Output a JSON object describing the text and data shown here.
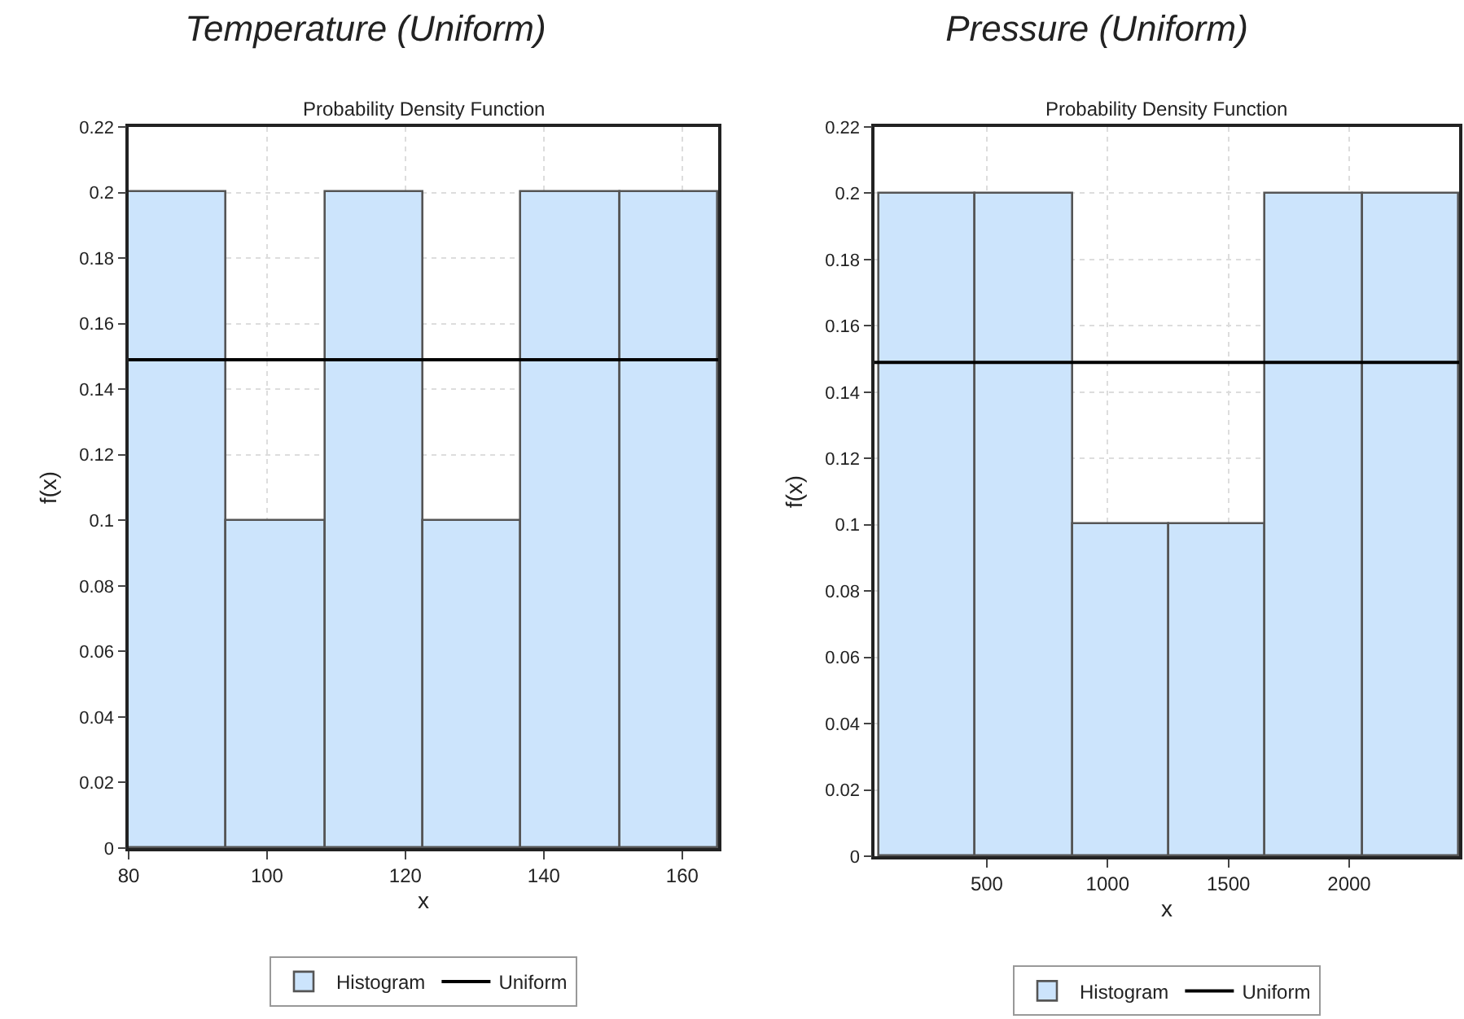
{
  "chart_data": [
    {
      "type": "histogram",
      "title": "Temperature (Uniform)",
      "subtitle": "Probability Density Function",
      "xlabel": "x",
      "ylabel": "f(x)",
      "bins": [
        80,
        94.2,
        108.4,
        122.6,
        136.8,
        151,
        165.2
      ],
      "series": [
        {
          "name": "Histogram",
          "color": "#cce4fc",
          "values": [
            0.2,
            0.1,
            0.2,
            0.1,
            0.2,
            0.2
          ]
        },
        {
          "name": "Uniform",
          "type": "line",
          "color": "#000000",
          "x": [
            80,
            165.2
          ],
          "values": [
            0.149,
            0.149
          ]
        }
      ],
      "xlim": [
        80,
        165.2
      ],
      "xticks": [
        80,
        100,
        120,
        140,
        160
      ],
      "ylim": [
        0,
        0.22
      ],
      "yticks": [
        0,
        0.02,
        0.04,
        0.06,
        0.08,
        0.1,
        0.12,
        0.14,
        0.16,
        0.18,
        0.2,
        0.22
      ],
      "grid": true,
      "legend": "bottom"
    },
    {
      "type": "histogram",
      "title": "Pressure (Uniform)",
      "subtitle": "Probability Density Function",
      "xlabel": "x",
      "ylabel": "f(x)",
      "bins": [
        55,
        455,
        855,
        1255,
        1655,
        2055,
        2455
      ],
      "series": [
        {
          "name": "Histogram",
          "color": "#cce4fc",
          "values": [
            0.2,
            0.2,
            0.1,
            0.1,
            0.2,
            0.2
          ]
        },
        {
          "name": "Uniform",
          "type": "line",
          "color": "#000000",
          "x": [
            35,
            2455
          ],
          "values": [
            0.149,
            0.149
          ]
        }
      ],
      "xlim": [
        35,
        2455
      ],
      "xticks": [
        500,
        1000,
        1500,
        2000
      ],
      "ylim": [
        0,
        0.22
      ],
      "yticks": [
        0,
        0.02,
        0.04,
        0.06,
        0.08,
        0.1,
        0.12,
        0.14,
        0.16,
        0.18,
        0.2,
        0.22
      ],
      "grid": true,
      "legend": "bottom"
    }
  ]
}
